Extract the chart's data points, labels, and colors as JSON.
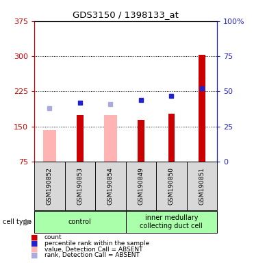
{
  "title": "GDS3150 / 1398133_at",
  "samples": [
    "GSM190852",
    "GSM190853",
    "GSM190854",
    "GSM190849",
    "GSM190850",
    "GSM190851"
  ],
  "count_values": [
    null,
    175,
    null,
    165,
    178,
    303
  ],
  "value_absent": [
    143,
    null,
    175,
    null,
    null,
    null
  ],
  "rank_present_pct": [
    null,
    42,
    null,
    44,
    47,
    52
  ],
  "rank_absent_pct": [
    38,
    null,
    41,
    null,
    null,
    null
  ],
  "ylim_left": [
    75,
    375
  ],
  "ylim_right": [
    0,
    100
  ],
  "yticks_left": [
    75,
    150,
    225,
    300,
    375
  ],
  "yticks_right": [
    0,
    25,
    50,
    75,
    100
  ],
  "ytick_labels_right": [
    "0",
    "25",
    "50",
    "75",
    "100%"
  ],
  "groups": [
    {
      "label": "control",
      "count": 3,
      "color": "#aaffaa"
    },
    {
      "label": "inner medullary\ncollecting duct cell",
      "count": 3,
      "color": "#aaffaa"
    }
  ],
  "bar_color_red": "#cc0000",
  "bar_color_pink": "#ffb3b3",
  "marker_color_blue": "#2222cc",
  "marker_color_lightblue": "#aaaadd",
  "left_tick_color": "#cc0000",
  "right_tick_color": "#2222cc",
  "bg_color": "#d8d8d8",
  "legend_items": [
    {
      "label": "count",
      "color": "#cc0000"
    },
    {
      "label": "percentile rank within the sample",
      "color": "#2222cc"
    },
    {
      "label": "value, Detection Call = ABSENT",
      "color": "#ffb3b3"
    },
    {
      "label": "rank, Detection Call = ABSENT",
      "color": "#aaaadd"
    }
  ]
}
